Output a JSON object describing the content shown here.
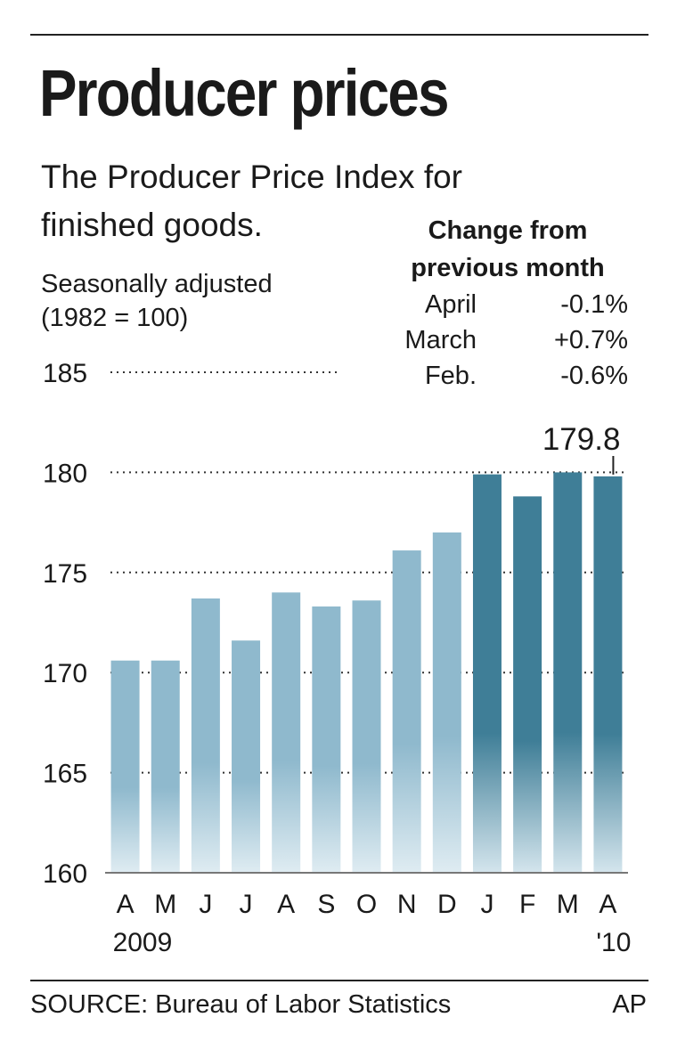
{
  "header": {
    "title": "Producer prices",
    "subtitle": "The Producer Price Index for finished goods.",
    "note_line1": "Seasonally adjusted",
    "note_line2": "(1982 = 100)"
  },
  "change_table": {
    "heading_line1": "Change from",
    "heading_line2": "previous month",
    "rows": [
      {
        "month": "April",
        "value": "-0.1%"
      },
      {
        "month": "March",
        "value": "+0.7%"
      },
      {
        "month": "Feb.",
        "value": "-0.6%"
      }
    ]
  },
  "chart_data": {
    "type": "bar",
    "categories": [
      "A",
      "M",
      "J",
      "J",
      "A",
      "S",
      "O",
      "N",
      "D",
      "J",
      "F",
      "M",
      "A"
    ],
    "values": [
      170.6,
      170.6,
      173.7,
      171.6,
      174.0,
      173.3,
      173.6,
      176.1,
      177.0,
      179.9,
      178.8,
      180.0,
      179.8
    ],
    "year_labels": [
      {
        "label": "2009",
        "index": 0
      },
      {
        "label": "'10",
        "index": 12
      }
    ],
    "ylim": [
      160,
      185
    ],
    "yticks": [
      160,
      165,
      170,
      175,
      180,
      185
    ],
    "callout": {
      "index": 12,
      "label": "179.8"
    },
    "colors": {
      "light": "#8fb9cd",
      "dark": "#3f7e97"
    },
    "dark_from_index": 9,
    "grid": "dotted",
    "xlabel": "",
    "ylabel": ""
  },
  "footer": {
    "source": "SOURCE: Bureau of Labor Statistics",
    "credit": "AP"
  }
}
